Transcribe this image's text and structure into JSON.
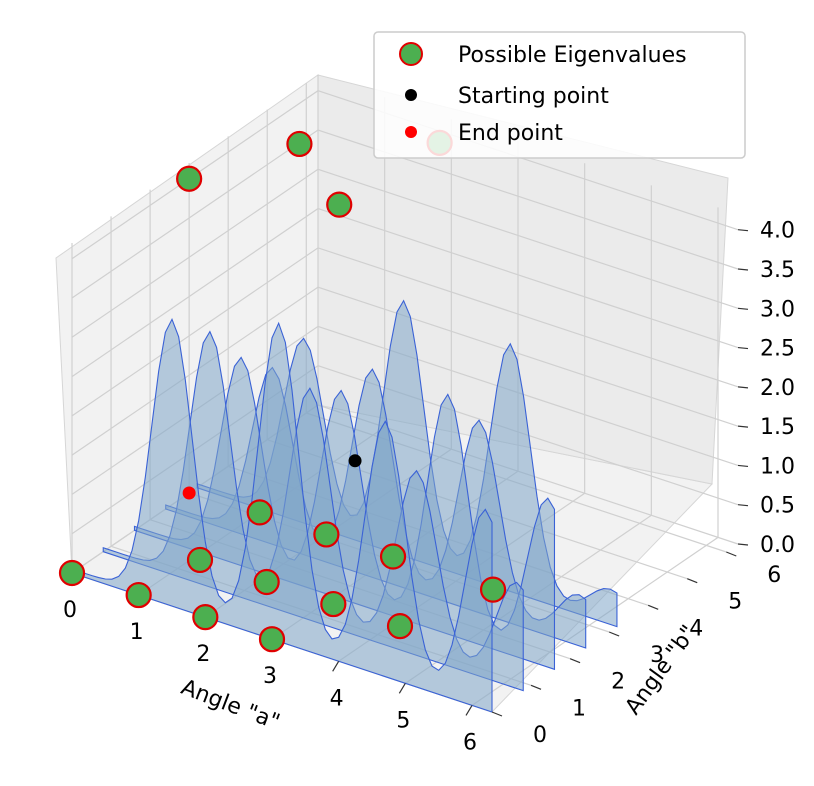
{
  "chart_data": {
    "type": "surface3d-scatter",
    "title": "",
    "xlabel": "Angle \"a\"",
    "ylabel": "Angle \"b\"",
    "zlabel": "",
    "xlim": [
      0,
      6.3
    ],
    "ylim": [
      0,
      6.3
    ],
    "zlim": [
      0,
      4.2
    ],
    "x_ticks": [
      "0",
      "1",
      "2",
      "3",
      "4",
      "5",
      "6"
    ],
    "y_ticks": [
      "0",
      "1",
      "2",
      "3",
      "4",
      "5",
      "6"
    ],
    "z_ticks": [
      "0.0",
      "0.5",
      "1.0",
      "1.5",
      "2.0",
      "2.5",
      "3.0",
      "3.5",
      "4.0"
    ],
    "grid": true,
    "legend_position": "top-right",
    "legend": [
      {
        "label": "Possible Eigenvalues",
        "marker": "circle-large",
        "fill": "#4caf50",
        "edge": "#e00000"
      },
      {
        "label": "Starting point",
        "marker": "circle-small",
        "fill": "#000000",
        "edge": "#000000"
      },
      {
        "label": "End point",
        "marker": "circle-small",
        "fill": "#ff0000",
        "edge": "#ff0000"
      }
    ],
    "surface": {
      "color": "#7fa6c9",
      "edge_color": "#3a62d6",
      "opacity": 0.55,
      "ridges": [
        {
          "b": 0.0,
          "peaks": [
            {
              "a": 1.5,
              "z": 3.6
            },
            {
              "a": 3.1,
              "z": 4.0
            },
            {
              "a": 4.7,
              "z": 3.2
            },
            {
              "a": 6.2,
              "z": 2.5
            }
          ]
        },
        {
          "b": 0.8,
          "peaks": [
            {
              "a": 1.6,
              "z": 3.2
            },
            {
              "a": 3.1,
              "z": 2.9
            },
            {
              "a": 4.7,
              "z": 2.3
            },
            {
              "a": 6.2,
              "z": 1.3
            }
          ]
        },
        {
          "b": 1.6,
          "peaks": [
            {
              "a": 1.6,
              "z": 2.6
            },
            {
              "a": 3.1,
              "z": 2.6
            },
            {
              "a": 4.7,
              "z": 3.0
            },
            {
              "a": 6.2,
              "z": 2.1
            }
          ]
        },
        {
          "b": 2.4,
          "peaks": [
            {
              "a": 1.6,
              "z": 2.2
            },
            {
              "a": 3.1,
              "z": 2.6
            },
            {
              "a": 4.7,
              "z": 2.4
            },
            {
              "a": 6.2,
              "z": 0.6
            }
          ]
        },
        {
          "b": 3.2,
          "peaks": [
            {
              "a": 1.6,
              "z": 2.3
            },
            {
              "a": 3.1,
              "z": 3.2
            },
            {
              "a": 4.7,
              "z": 3.1
            },
            {
              "a": 6.2,
              "z": 0.4
            }
          ]
        }
      ]
    },
    "points": {
      "possible_eigenvalues": [
        {
          "a": 0.0,
          "b": 0.0,
          "z": 0.0
        },
        {
          "a": 1.0,
          "b": 0.0,
          "z": 0.0
        },
        {
          "a": 2.0,
          "b": 0.0,
          "z": 0.0
        },
        {
          "a": 3.0,
          "b": 0.0,
          "z": 0.0
        },
        {
          "a": 1.1,
          "b": 1.4,
          "z": 0.0
        },
        {
          "a": 2.1,
          "b": 1.4,
          "z": 0.0
        },
        {
          "a": 3.1,
          "b": 1.4,
          "z": 0.0
        },
        {
          "a": 4.1,
          "b": 1.4,
          "z": 0.0
        },
        {
          "a": 1.0,
          "b": 3.1,
          "z": 0.0
        },
        {
          "a": 2.0,
          "b": 3.1,
          "z": 0.0
        },
        {
          "a": 3.0,
          "b": 3.1,
          "z": 0.0
        },
        {
          "a": 4.5,
          "b": 3.1,
          "z": 0.0
        },
        {
          "a": 0.0,
          "b": 3.0,
          "z": 4.0
        },
        {
          "a": 0.6,
          "b": 4.8,
          "z": 4.0
        },
        {
          "a": 1.9,
          "b": 3.6,
          "z": 4.0
        },
        {
          "a": 2.0,
          "b": 6.0,
          "z": 4.0
        }
      ],
      "starting_point": [
        {
          "a": 1.2,
          "b": 5.2,
          "z": 0.0
        }
      ],
      "end_point": [
        {
          "a": 0.0,
          "b": 3.0,
          "z": 0.0
        }
      ]
    }
  }
}
